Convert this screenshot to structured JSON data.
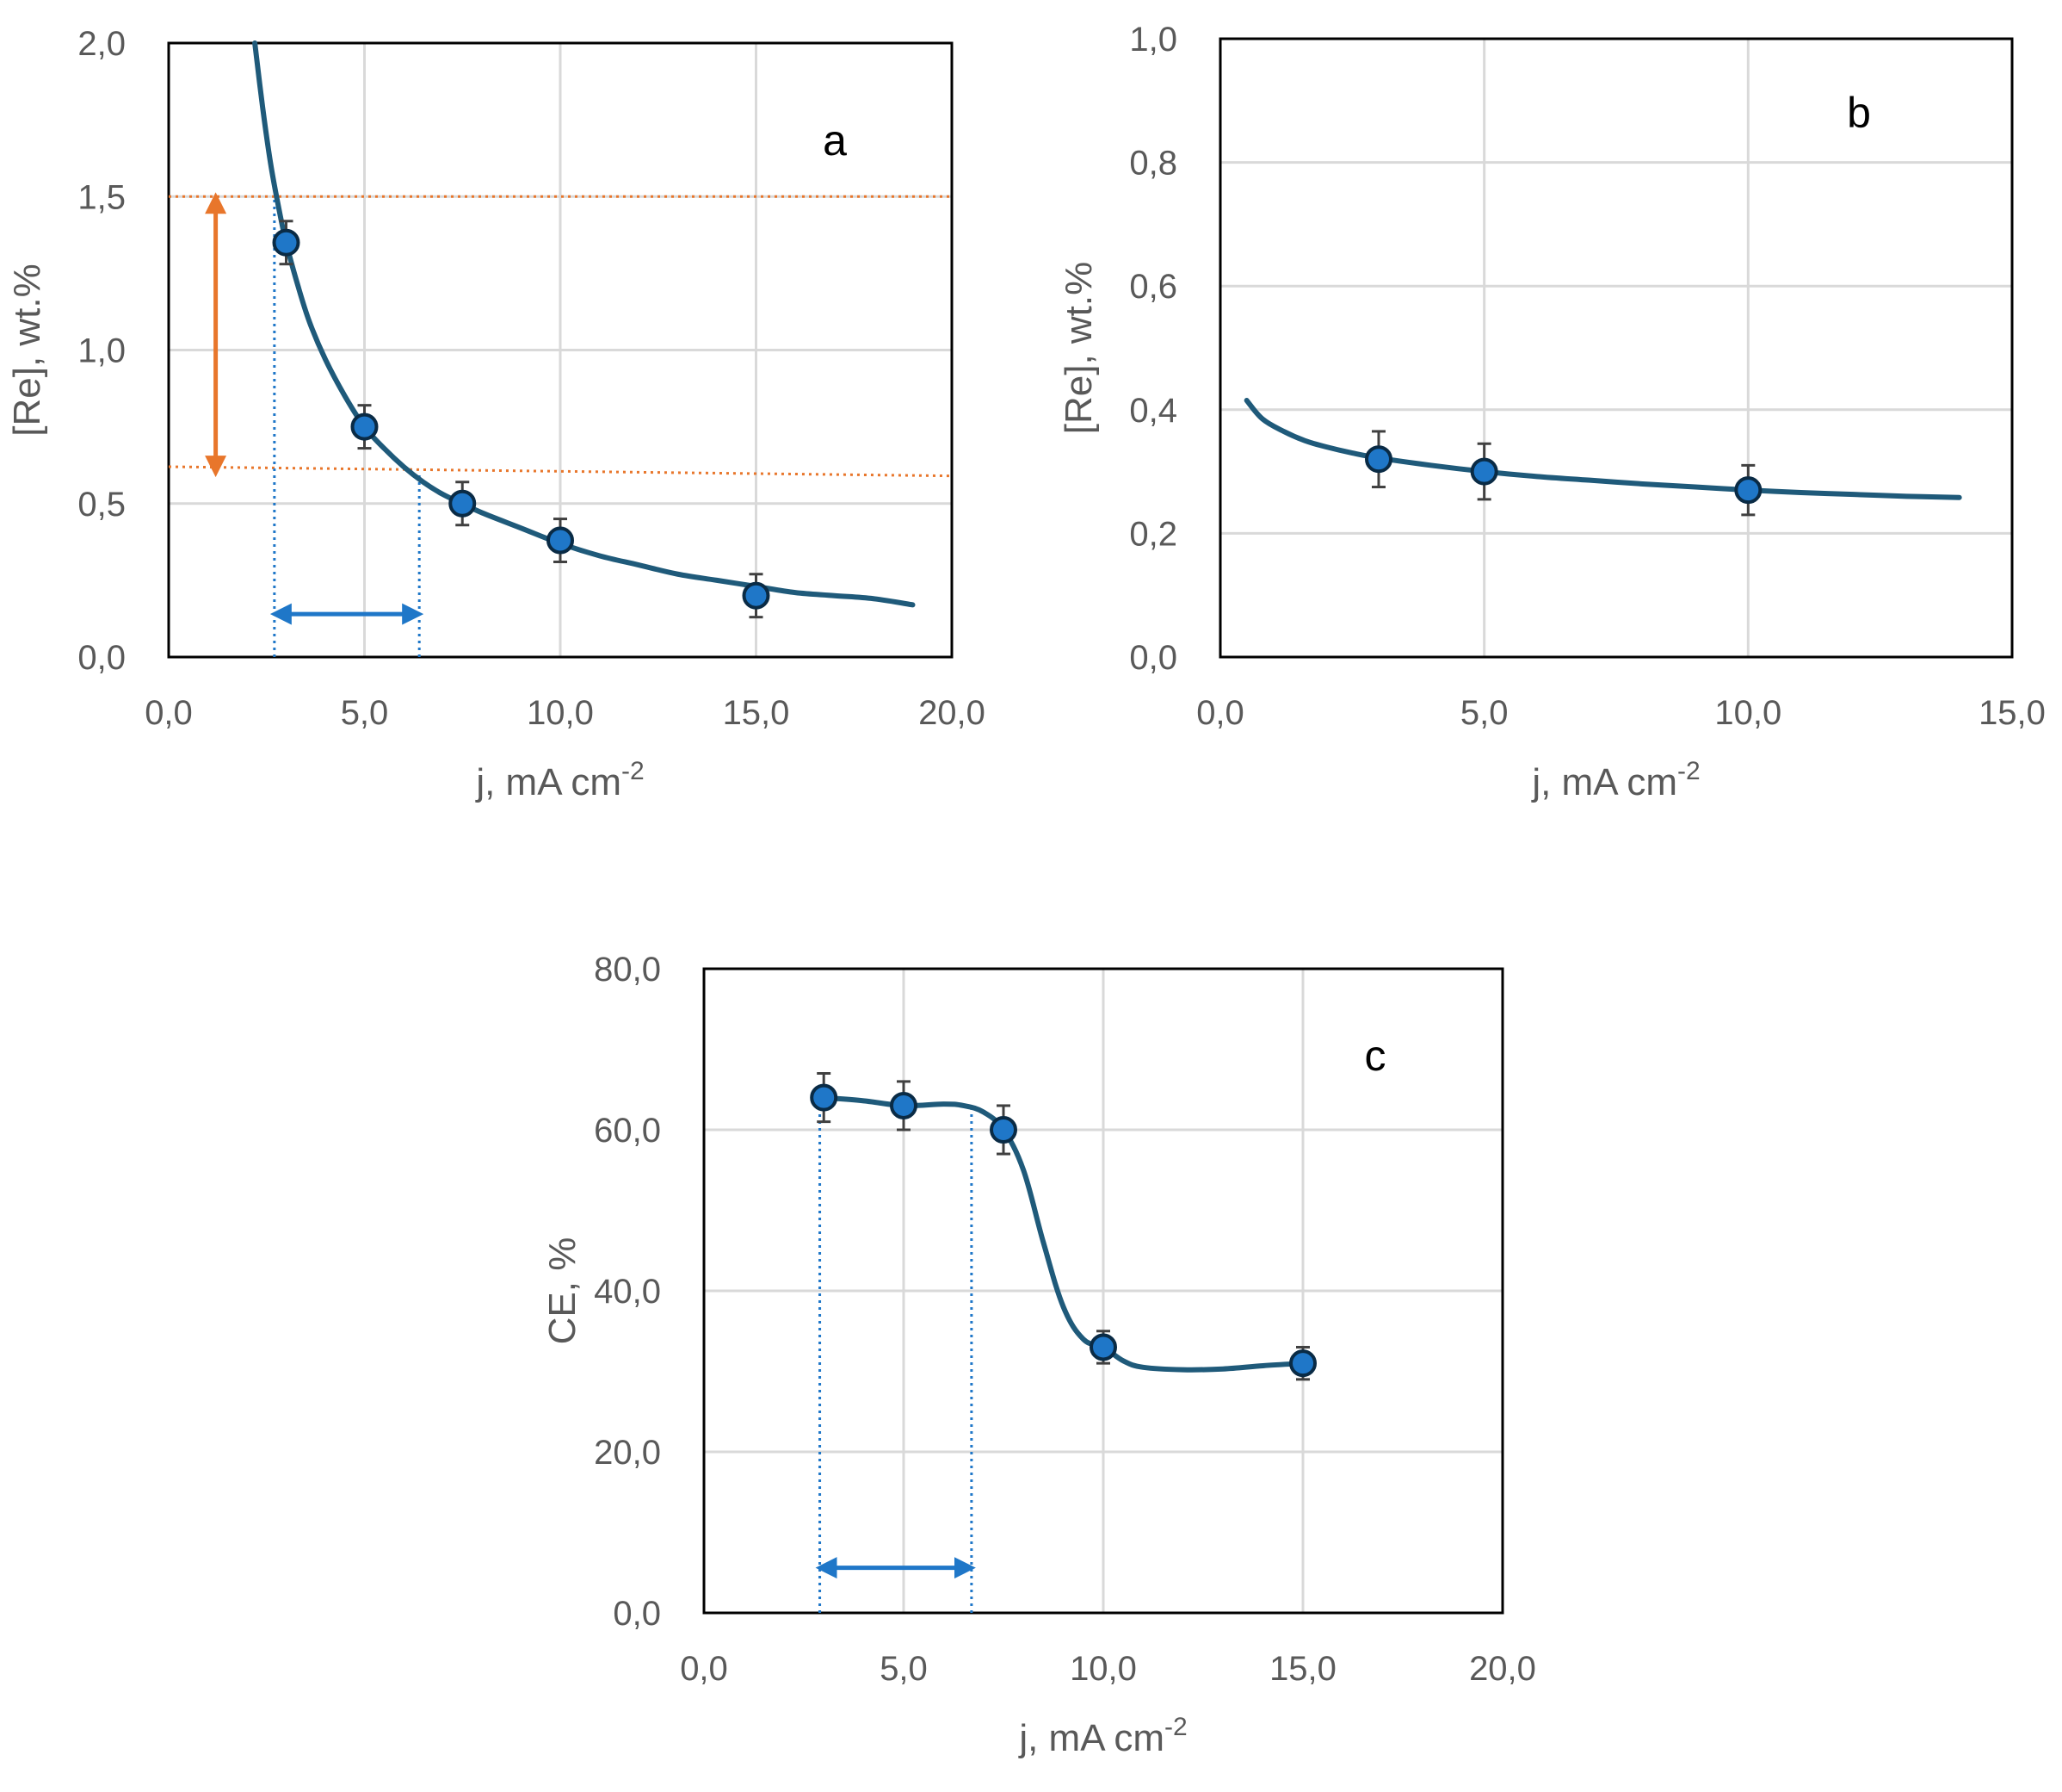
{
  "colors": {
    "curve": "#1F5A7A",
    "marker_fill": "#1F77C8",
    "marker_stroke": "#0A2B45",
    "grid": "#D9D9D9",
    "range_orange": "#E8762B",
    "range_blue": "#1F77C8",
    "frame": "#000000"
  },
  "chart_data": [
    {
      "panel": "a",
      "type": "scatter",
      "xlabel": "j, mA cm",
      "xlabel_sup": "-2",
      "ylabel": "[Re], wt.%",
      "xlim": [
        0,
        20
      ],
      "ylim": [
        0,
        2
      ],
      "x_ticks": [
        "0,0",
        "5,0",
        "10,0",
        "15,0",
        "20,0"
      ],
      "y_ticks": [
        "0,0",
        "0,5",
        "1,0",
        "1,5",
        "2,0"
      ],
      "grid": true,
      "series": [
        {
          "x": [
            3,
            5,
            7.5,
            10,
            15
          ],
          "y": [
            1.35,
            0.75,
            0.5,
            0.38,
            0.2
          ],
          "error": [
            0.07,
            0.07,
            0.07,
            0.07,
            0.07
          ]
        }
      ],
      "fit_curve": {
        "x": [
          2.2,
          2.4,
          2.6,
          2.8,
          3.0,
          3.3,
          3.6,
          4.0,
          4.5,
          5.0,
          5.5,
          6.0,
          6.5,
          7.0,
          7.5,
          8.0,
          9.0,
          10.0,
          11.0,
          12.0,
          13.0,
          14.0,
          15.0,
          16.0,
          17.0,
          18.0,
          19.0
        ],
        "y": [
          2.0,
          1.79,
          1.61,
          1.47,
          1.35,
          1.21,
          1.09,
          0.97,
          0.85,
          0.75,
          0.68,
          0.62,
          0.57,
          0.53,
          0.5,
          0.47,
          0.42,
          0.37,
          0.33,
          0.3,
          0.27,
          0.25,
          0.23,
          0.21,
          0.2,
          0.19,
          0.17
        ]
      },
      "reference_lines": [
        {
          "x": [
            0,
            20
          ],
          "y": [
            1.5,
            1.5
          ],
          "style": "dotted-orange"
        },
        {
          "x": [
            0,
            20
          ],
          "y": [
            0.62,
            0.59
          ],
          "style": "dotted-orange"
        },
        {
          "x": [
            2.7,
            2.7
          ],
          "y": [
            0,
            1.5
          ],
          "style": "dotted-blue"
        },
        {
          "x": [
            6.4,
            6.4
          ],
          "y": [
            0,
            0.6
          ],
          "style": "dotted-blue"
        }
      ],
      "arrows": [
        {
          "x1": 1.2,
          "y1": 1.5,
          "x2": 1.2,
          "y2": 0.6,
          "color": "orange"
        },
        {
          "x1": 2.7,
          "y1": 0.14,
          "x2": 6.4,
          "y2": 0.14,
          "color": "blue"
        }
      ]
    },
    {
      "panel": "b",
      "type": "scatter",
      "xlabel": "j, mA cm",
      "xlabel_sup": "-2",
      "ylabel": "[Re], wt.%",
      "xlim": [
        0,
        15
      ],
      "ylim": [
        0,
        1
      ],
      "x_ticks": [
        "0,0",
        "5,0",
        "10,0",
        "15,0"
      ],
      "y_ticks": [
        "0,0",
        "0,2",
        "0,4",
        "0,6",
        "0,8",
        "1,0"
      ],
      "grid": true,
      "series": [
        {
          "x": [
            3,
            5,
            10
          ],
          "y": [
            0.32,
            0.3,
            0.27
          ],
          "error": [
            0.045,
            0.045,
            0.04
          ]
        }
      ],
      "fit_curve": {
        "x": [
          0.5,
          0.8,
          1.2,
          1.6,
          2.0,
          2.5,
          3.0,
          4.0,
          5.0,
          6.0,
          7.0,
          8.0,
          9.0,
          10.0,
          11.0,
          12.0,
          13.0,
          14.0
        ],
        "y": [
          0.415,
          0.385,
          0.365,
          0.35,
          0.34,
          0.33,
          0.322,
          0.31,
          0.3,
          0.292,
          0.286,
          0.28,
          0.275,
          0.27,
          0.266,
          0.263,
          0.26,
          0.258
        ]
      }
    },
    {
      "panel": "c",
      "type": "scatter",
      "xlabel": "j, mA cm",
      "xlabel_sup": "-2",
      "ylabel": "CE, %",
      "xlim": [
        0,
        20
      ],
      "ylim": [
        0,
        80
      ],
      "x_ticks": [
        "0,0",
        "5,0",
        "10,0",
        "15,0",
        "20,0"
      ],
      "y_ticks": [
        "0,0",
        "20,0",
        "40,0",
        "60,0",
        "80,0"
      ],
      "grid": true,
      "series": [
        {
          "x": [
            3,
            5,
            7.5,
            10,
            15
          ],
          "y": [
            64,
            63,
            60,
            33,
            31
          ],
          "error": [
            3,
            3,
            3,
            2,
            2
          ]
        }
      ],
      "fit_curve": {
        "x": [
          3,
          4,
          5,
          6,
          6.5,
          7,
          7.5,
          8,
          8.5,
          9,
          9.5,
          10,
          10.5,
          11,
          12,
          13,
          14,
          15
        ],
        "y": [
          64,
          63.6,
          63,
          63.2,
          63,
          62.2,
          60,
          55,
          46,
          38,
          34,
          33,
          31.3,
          30.5,
          30.2,
          30.3,
          30.7,
          31
        ]
      },
      "reference_lines": [
        {
          "x": [
            2.9,
            2.9
          ],
          "y": [
            0,
            64
          ],
          "style": "dotted-blue"
        },
        {
          "x": [
            6.7,
            6.7
          ],
          "y": [
            0,
            62.5
          ],
          "style": "dotted-blue"
        }
      ],
      "arrows": [
        {
          "x1": 2.9,
          "y1": 5.6,
          "x2": 6.7,
          "y2": 5.6,
          "color": "blue"
        }
      ]
    }
  ]
}
